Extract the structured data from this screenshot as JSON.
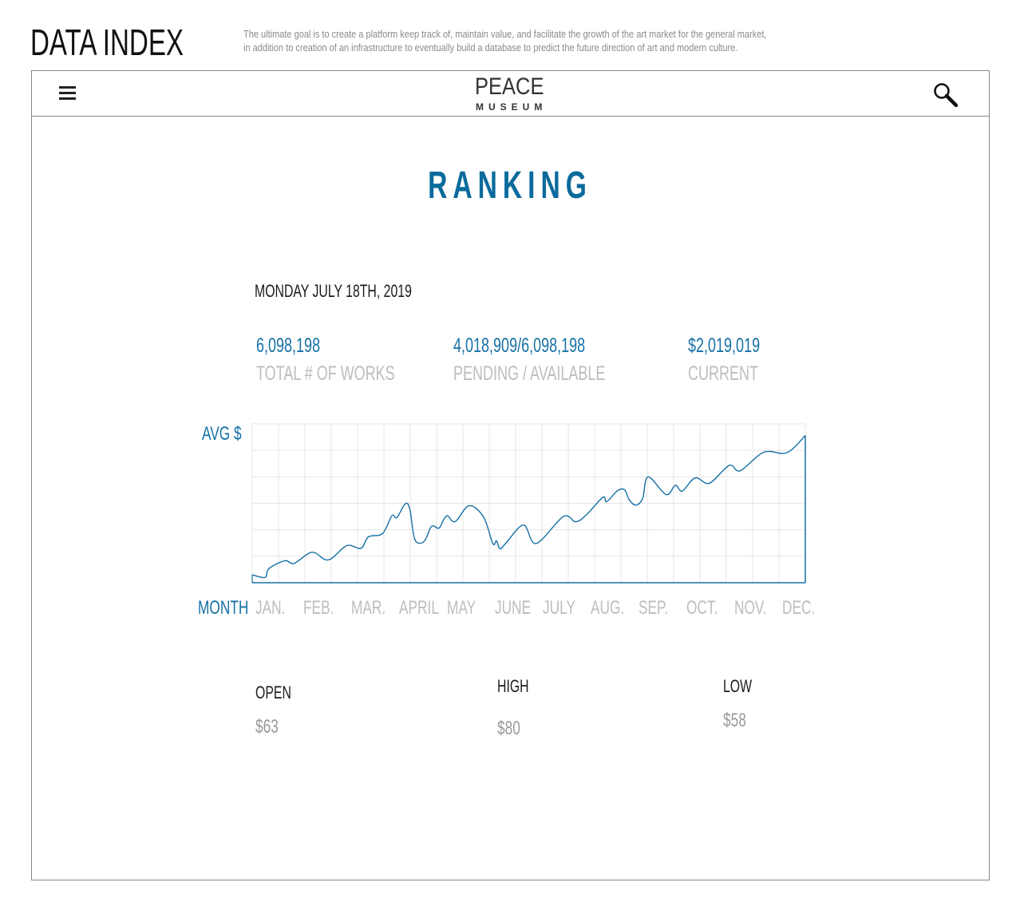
{
  "header": {
    "brand": "DATA INDEX",
    "tagline_line1": "The ultimate goal is to create a platform keep track of,  maintain value, and facilitate the growth of the art market for the general market,",
    "tagline_line2": "in addition to creation of an infrastructure to eventually build a database to predict the future direction of art and modern culture."
  },
  "navbar": {
    "menu_icon": "hamburger-menu-icon",
    "logo_line1": "PEACE",
    "logo_line2": "MUSEUM",
    "search_icon": "magnifier-icon"
  },
  "page": {
    "title": "RANKING",
    "date": "MONDAY JULY 18TH, 2019"
  },
  "stats": [
    {
      "value": "6,098,198",
      "label": "TOTAL # OF WORKS"
    },
    {
      "value": "4,018,909/6,098,198",
      "label": "PENDING / AVAILABLE"
    },
    {
      "value": "$2,019,019",
      "label": "CURRENT"
    }
  ],
  "colors": {
    "accent": "#1570a6",
    "muted": "#bdbdbd",
    "grid": "#e6e6e6"
  },
  "chart_data": {
    "type": "line",
    "ylabel": "AVG $",
    "xlabel": "MONTH",
    "categories": [
      "JAN.",
      "FEB.",
      "MAR.",
      "APRIL",
      "MAY",
      "JUNE",
      "JULY",
      "AUG.",
      "SEP.",
      "OCT.",
      "NOV.",
      "DEC."
    ],
    "xlim": [
      0,
      12
    ],
    "ylim": [
      0,
      6
    ],
    "grid": true,
    "series": [
      {
        "color": "#1570a6",
        "points": [
          [
            0,
            0.3
          ],
          [
            0.28,
            0.2
          ],
          [
            0.36,
            0.53
          ],
          [
            0.71,
            0.83
          ],
          [
            0.91,
            0.73
          ],
          [
            1.3,
            1.15
          ],
          [
            1.65,
            0.86
          ],
          [
            2.05,
            1.4
          ],
          [
            2.36,
            1.3
          ],
          [
            2.52,
            1.73
          ],
          [
            2.83,
            1.86
          ],
          [
            3.03,
            2.53
          ],
          [
            3.14,
            2.46
          ],
          [
            3.32,
            2.98
          ],
          [
            3.42,
            2.78
          ],
          [
            3.53,
            1.63
          ],
          [
            3.73,
            1.56
          ],
          [
            3.89,
            2.13
          ],
          [
            4.05,
            2.06
          ],
          [
            4.16,
            2.4
          ],
          [
            4.24,
            2.53
          ],
          [
            4.34,
            2.33
          ],
          [
            4.44,
            2.36
          ],
          [
            4.71,
            2.91
          ],
          [
            5.02,
            2.48
          ],
          [
            5.22,
            1.48
          ],
          [
            5.3,
            1.58
          ],
          [
            5.38,
            1.28
          ],
          [
            5.53,
            1.55
          ],
          [
            5.89,
            2.18
          ],
          [
            6.16,
            1.48
          ],
          [
            6.75,
            2.5
          ],
          [
            7.02,
            2.3
          ],
          [
            7.26,
            2.58
          ],
          [
            7.61,
            3.23
          ],
          [
            7.69,
            3.06
          ],
          [
            7.93,
            3.48
          ],
          [
            8.08,
            3.51
          ],
          [
            8.18,
            3.13
          ],
          [
            8.32,
            2.93
          ],
          [
            8.47,
            3.18
          ],
          [
            8.59,
            4.0
          ],
          [
            8.98,
            3.33
          ],
          [
            9.18,
            3.68
          ],
          [
            9.33,
            3.46
          ],
          [
            9.61,
            3.96
          ],
          [
            9.92,
            3.76
          ],
          [
            10.35,
            4.43
          ],
          [
            10.59,
            4.23
          ],
          [
            11.1,
            4.93
          ],
          [
            11.6,
            4.91
          ],
          [
            12,
            5.56
          ]
        ]
      }
    ]
  },
  "ohlc": [
    {
      "label": "OPEN",
      "value": "$63"
    },
    {
      "label": "HIGH",
      "value": "$80"
    },
    {
      "label": "LOW",
      "value": "$58"
    }
  ]
}
